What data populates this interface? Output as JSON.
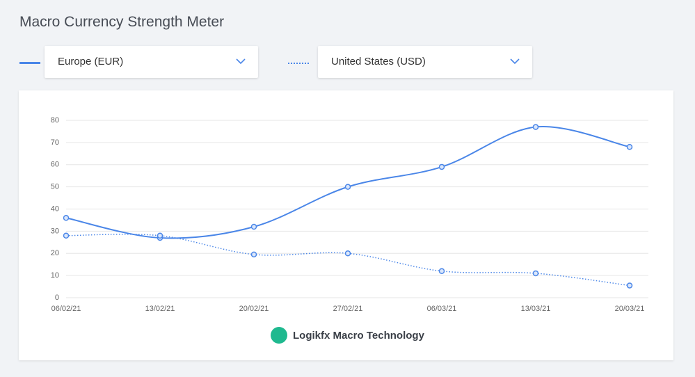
{
  "chart_data": {
    "type": "line",
    "title": "Macro Currency Strength Meter",
    "brand": "Logikfx Macro Technology",
    "categories": [
      "06/02/21",
      "13/02/21",
      "20/02/21",
      "27/02/21",
      "06/03/21",
      "13/03/21",
      "20/03/21"
    ],
    "series": [
      {
        "name": "Europe (EUR)",
        "color": "#4a86e8",
        "style": "solid",
        "values": [
          36,
          27,
          32,
          50,
          59,
          77,
          68
        ]
      },
      {
        "name": "United States (USD)",
        "color": "#4a86e8",
        "style": "dotted",
        "values": [
          28,
          28,
          19.5,
          20,
          12,
          11,
          5.5
        ]
      }
    ],
    "ylim": [
      0,
      80
    ],
    "yticks": [
      0,
      10,
      20,
      30,
      40,
      50,
      60,
      70,
      80
    ],
    "grid": true
  }
}
